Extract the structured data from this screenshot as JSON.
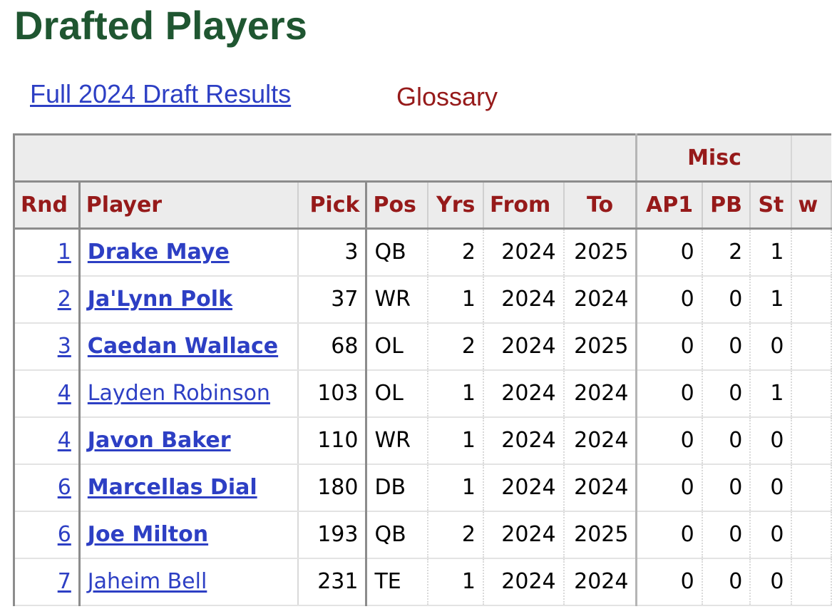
{
  "header": {
    "title": "Drafted Players",
    "full_results_link": "Full 2024 Draft Results",
    "glossary_link": "Glossary"
  },
  "table": {
    "over_header": {
      "blank": "",
      "misc": "Misc",
      "extra": ""
    },
    "columns": {
      "rnd": "Rnd",
      "player": "Player",
      "pick": "Pick",
      "pos": "Pos",
      "yrs": "Yrs",
      "from": "From",
      "to": "To",
      "ap1": "AP1",
      "pb": "PB",
      "st": "St",
      "extra": "w"
    },
    "rows": [
      {
        "rnd": "1",
        "player": "Drake Maye",
        "pick": "3",
        "pos": "QB",
        "yrs": "2",
        "from": "2024",
        "to": "2025",
        "ap1": "0",
        "pb": "2",
        "st": "1",
        "bold": true
      },
      {
        "rnd": "2",
        "player": "Ja'Lynn Polk",
        "pick": "37",
        "pos": "WR",
        "yrs": "1",
        "from": "2024",
        "to": "2024",
        "ap1": "0",
        "pb": "0",
        "st": "1",
        "bold": true
      },
      {
        "rnd": "3",
        "player": "Caedan Wallace",
        "pick": "68",
        "pos": "OL",
        "yrs": "2",
        "from": "2024",
        "to": "2025",
        "ap1": "0",
        "pb": "0",
        "st": "0",
        "bold": true
      },
      {
        "rnd": "4",
        "player": "Layden Robinson",
        "pick": "103",
        "pos": "OL",
        "yrs": "1",
        "from": "2024",
        "to": "2024",
        "ap1": "0",
        "pb": "0",
        "st": "1",
        "bold": false
      },
      {
        "rnd": "4",
        "player": "Javon Baker",
        "pick": "110",
        "pos": "WR",
        "yrs": "1",
        "from": "2024",
        "to": "2024",
        "ap1": "0",
        "pb": "0",
        "st": "0",
        "bold": true
      },
      {
        "rnd": "6",
        "player": "Marcellas Dial",
        "pick": "180",
        "pos": "DB",
        "yrs": "1",
        "from": "2024",
        "to": "2024",
        "ap1": "0",
        "pb": "0",
        "st": "0",
        "bold": true
      },
      {
        "rnd": "6",
        "player": "Joe Milton",
        "pick": "193",
        "pos": "QB",
        "yrs": "2",
        "from": "2024",
        "to": "2025",
        "ap1": "0",
        "pb": "0",
        "st": "0",
        "bold": true
      },
      {
        "rnd": "7",
        "player": "Jaheim Bell",
        "pick": "231",
        "pos": "TE",
        "yrs": "1",
        "from": "2024",
        "to": "2024",
        "ap1": "0",
        "pb": "0",
        "st": "0",
        "bold": false
      }
    ]
  },
  "colors": {
    "title": "#1f5631",
    "link": "#2d3fc4",
    "header_text": "#961a1a",
    "header_bg": "#ececec"
  }
}
